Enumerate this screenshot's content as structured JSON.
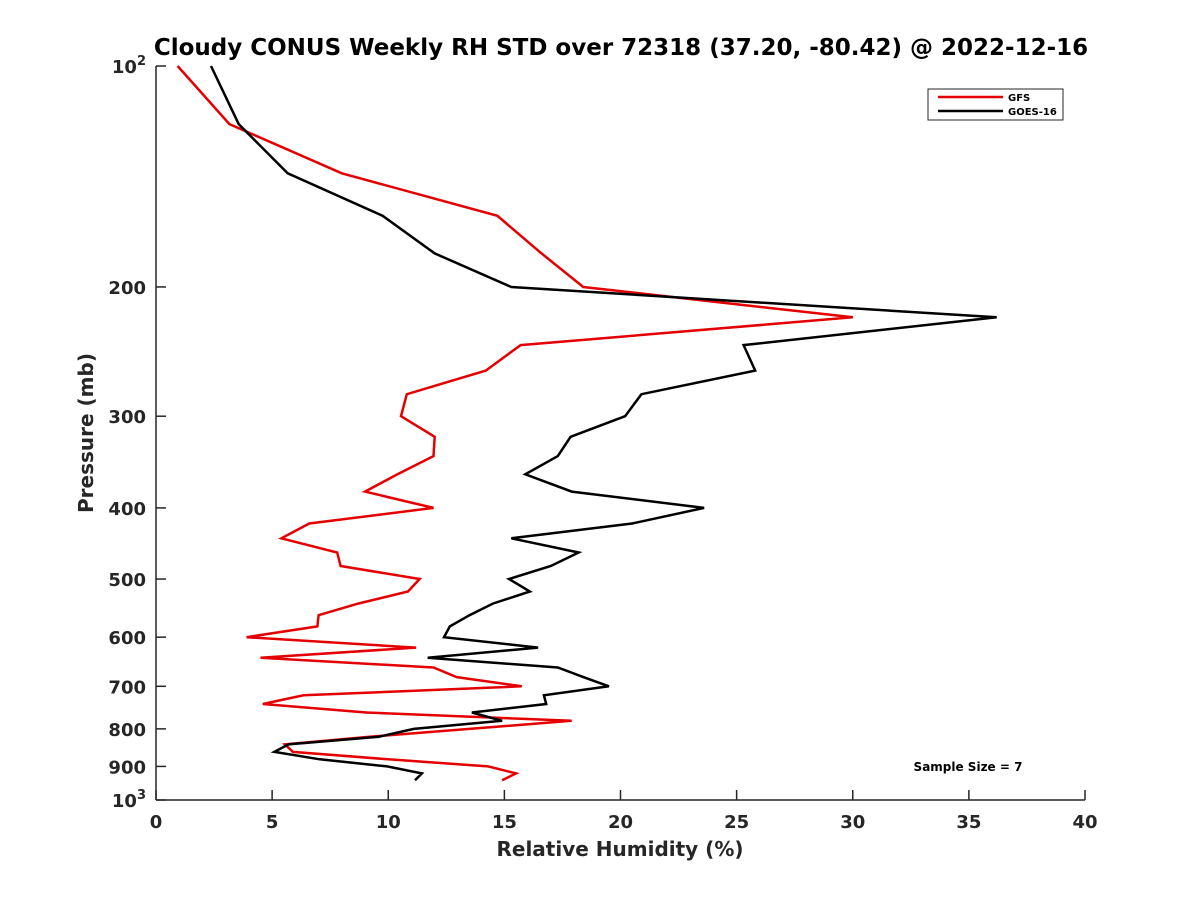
{
  "chart_data": {
    "type": "line",
    "title": "Cloudy CONUS Weekly RH STD over 72318 (37.20, -80.42) @ 2022-12-16",
    "xlabel": "Relative Humidity (%)",
    "ylabel": "Pressure (mb)",
    "xlim": [
      0,
      40
    ],
    "ylim": [
      1000,
      100
    ],
    "yscale": "log",
    "y_inverted": true,
    "grid": false,
    "xticks": [
      0,
      5,
      10,
      15,
      20,
      25,
      30,
      35,
      40
    ],
    "xtick_labels": [
      "0",
      "5",
      "10",
      "15",
      "20",
      "25",
      "30",
      "35",
      "40"
    ],
    "yticks": [
      100,
      200,
      300,
      400,
      500,
      600,
      700,
      800,
      900,
      1000
    ],
    "ytick_labels": [
      {
        "base": "10",
        "sup": "2"
      },
      {
        "base": "200",
        "sup": ""
      },
      {
        "base": "300",
        "sup": ""
      },
      {
        "base": "400",
        "sup": ""
      },
      {
        "base": "500",
        "sup": ""
      },
      {
        "base": "600",
        "sup": ""
      },
      {
        "base": "700",
        "sup": ""
      },
      {
        "base": "800",
        "sup": ""
      },
      {
        "base": "900",
        "sup": ""
      },
      {
        "base": "10",
        "sup": "3"
      }
    ],
    "pressure": [
      100,
      120,
      140,
      160,
      180,
      200,
      220,
      240,
      260,
      280,
      300,
      320,
      340,
      360,
      380,
      400,
      420,
      440,
      460,
      480,
      500,
      520,
      540,
      560,
      580,
      600,
      620,
      640,
      660,
      680,
      700,
      720,
      740,
      760,
      780,
      800,
      820,
      840,
      860,
      880,
      900,
      920,
      940
    ],
    "series": [
      {
        "name": "GFS",
        "color": "#e50000",
        "values": [
          0.93,
          3.16,
          8.0,
          14.7,
          16.6,
          18.4,
          30.0,
          15.7,
          14.2,
          10.8,
          10.55,
          12.0,
          11.95,
          10.4,
          9.0,
          11.95,
          6.6,
          5.4,
          7.8,
          7.95,
          11.35,
          10.85,
          8.7,
          7.0,
          6.95,
          3.9,
          11.2,
          4.5,
          11.95,
          12.95,
          15.75,
          6.35,
          4.6,
          9.05,
          17.9,
          13.5,
          9.2,
          5.55,
          5.9,
          10.0,
          14.3,
          15.5,
          14.9
        ]
      },
      {
        "name": "GOES-16",
        "color": "#000000",
        "values": [
          2.37,
          3.56,
          5.67,
          9.76,
          12.0,
          15.3,
          36.2,
          25.3,
          25.8,
          20.9,
          20.2,
          17.85,
          17.3,
          15.9,
          17.9,
          23.6,
          20.5,
          15.3,
          18.2,
          17.0,
          15.2,
          16.1,
          14.5,
          13.5,
          12.65,
          12.4,
          16.45,
          11.7,
          17.3,
          18.4,
          19.5,
          16.7,
          16.8,
          13.6,
          14.9,
          11.1,
          9.6,
          5.7,
          5.1,
          7.05,
          9.95,
          11.45,
          11.15
        ]
      }
    ],
    "legend": {
      "placement": "top-right",
      "entries": [
        "GFS",
        "GOES-16"
      ]
    },
    "annotations": [
      "Sample Size = 7"
    ]
  }
}
